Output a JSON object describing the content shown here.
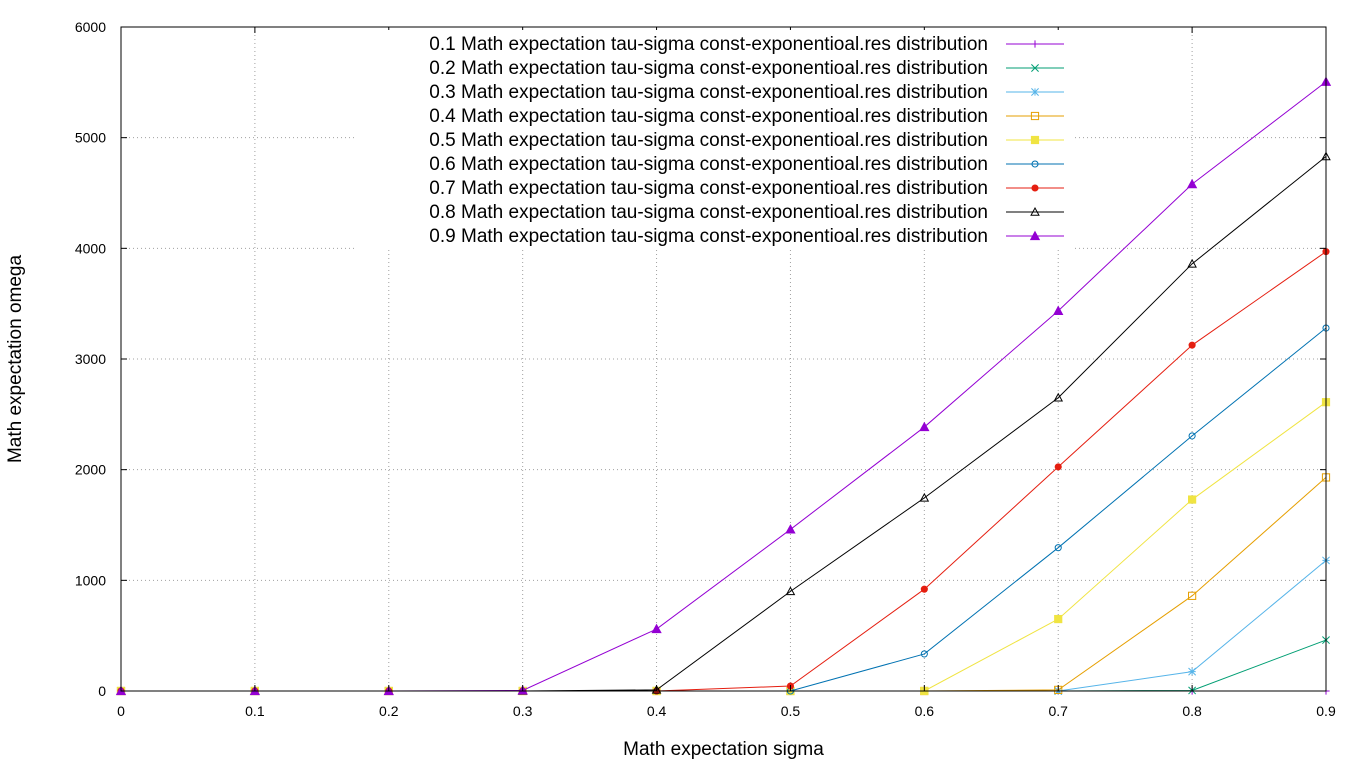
{
  "chart_data": {
    "type": "line",
    "title": "",
    "xlabel": "Math expectation sigma",
    "ylabel": "Math expectation omega",
    "xlim": [
      0,
      0.9
    ],
    "ylim": [
      0,
      6000
    ],
    "xticks": [
      "0",
      "0.1",
      "0.2",
      "0.3",
      "0.4",
      "0.5",
      "0.6",
      "0.7",
      "0.8",
      "0.9"
    ],
    "yticks": [
      "0",
      "1000",
      "2000",
      "3000",
      "4000",
      "5000",
      "6000"
    ],
    "grid": true,
    "legend_position": "top-center",
    "x": [
      0,
      0.1,
      0.2,
      0.3,
      0.4,
      0.5,
      0.6,
      0.7,
      0.8,
      0.9
    ],
    "series": [
      {
        "name": "0.1 Math expectation tau-sigma const-exponentioal.res distribution",
        "color": "#9400d3",
        "marker": "plus",
        "values": [
          0,
          0,
          0,
          0,
          0,
          0,
          0,
          0,
          0,
          0
        ]
      },
      {
        "name": "0.2 Math expectation tau-sigma const-exponentioal.res distribution",
        "color": "#009e73",
        "marker": "cross",
        "values": [
          0,
          0,
          0,
          0,
          0,
          0,
          0,
          0,
          5,
          460
        ]
      },
      {
        "name": "0.3 Math expectation tau-sigma const-exponentioal.res distribution",
        "color": "#56b4e9",
        "marker": "star",
        "values": [
          0,
          0,
          0,
          0,
          0,
          0,
          0,
          0,
          175,
          1180
        ]
      },
      {
        "name": "0.4 Math expectation tau-sigma const-exponentioal.res distribution",
        "color": "#e69f00",
        "marker": "open-square",
        "values": [
          0,
          0,
          0,
          0,
          0,
          0,
          0,
          10,
          860,
          1930
        ]
      },
      {
        "name": "0.5 Math expectation tau-sigma const-exponentioal.res distribution",
        "color": "#f0e442",
        "marker": "filled-square",
        "values": [
          0,
          0,
          0,
          0,
          0,
          0,
          0,
          650,
          1730,
          2610
        ]
      },
      {
        "name": "0.6 Math expectation tau-sigma const-exponentioal.res distribution",
        "color": "#0072b2",
        "marker": "open-circle",
        "values": [
          0,
          0,
          0,
          0,
          0,
          0,
          335,
          1295,
          2305,
          3280
        ]
      },
      {
        "name": "0.7 Math expectation tau-sigma const-exponentioal.res distribution",
        "color": "#e51e10",
        "marker": "filled-circle",
        "values": [
          0,
          0,
          0,
          0,
          0,
          45,
          920,
          2025,
          3125,
          3970
        ]
      },
      {
        "name": "0.8 Math expectation tau-sigma const-exponentioal.res distribution",
        "color": "#000000",
        "marker": "open-triangle",
        "values": [
          0,
          0,
          0,
          0,
          10,
          900,
          1745,
          2650,
          3860,
          4830
        ]
      },
      {
        "name": "0.9 Math expectation tau-sigma const-exponentioal.res distribution",
        "color": "#9400d3",
        "marker": "filled-triangle",
        "values": [
          0,
          0,
          0,
          5,
          560,
          1460,
          2385,
          3435,
          4580,
          5505
        ]
      }
    ]
  }
}
